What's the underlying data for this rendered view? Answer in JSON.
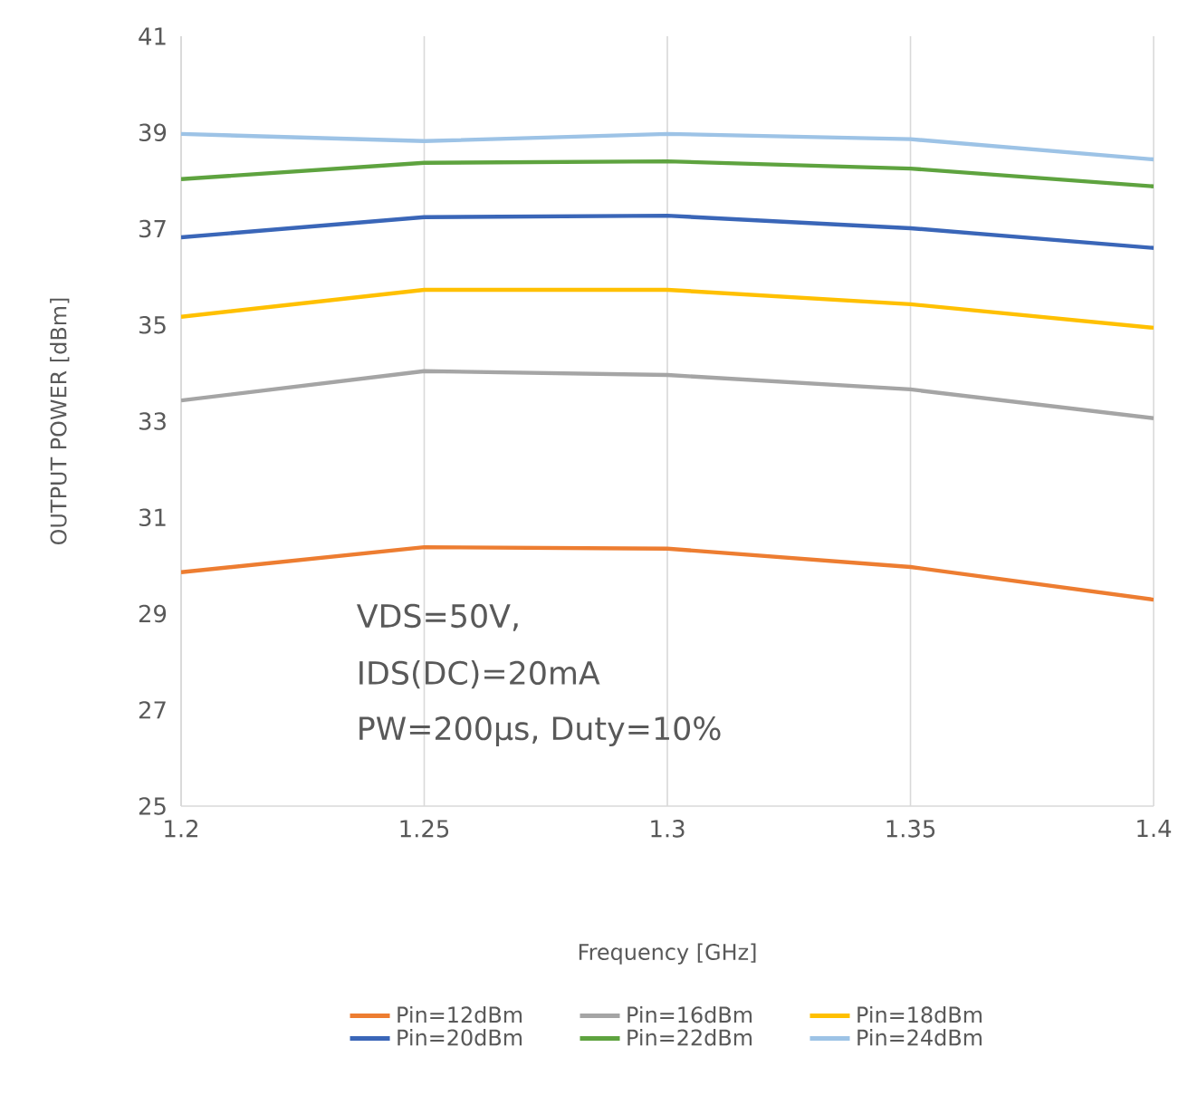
{
  "chart_data": {
    "type": "line",
    "xlabel": "Frequency [GHz]",
    "ylabel": "OUTPUT POWER [dBm]",
    "x": [
      1.2,
      1.25,
      1.3,
      1.35,
      1.4
    ],
    "xlim": [
      1.2,
      1.4
    ],
    "xticks": [
      1.2,
      1.25,
      1.3,
      1.35,
      1.4
    ],
    "ylim": [
      25,
      41
    ],
    "yticks": [
      25,
      27,
      29,
      31,
      33,
      35,
      37,
      39,
      41
    ],
    "grid": "x",
    "legend": "bottom",
    "series": [
      {
        "name": "Pin=12dBm",
        "color": "#ed7d31",
        "values": [
          29.86,
          30.38,
          30.35,
          29.97,
          29.29
        ]
      },
      {
        "name": "Pin=16dBm",
        "color": "#a5a5a5",
        "values": [
          33.43,
          34.04,
          33.96,
          33.66,
          33.06
        ]
      },
      {
        "name": "Pin=18dBm",
        "color": "#ffc000",
        "values": [
          35.17,
          35.73,
          35.73,
          35.43,
          34.94
        ]
      },
      {
        "name": "Pin=20dBm",
        "color": "#3a66b8",
        "values": [
          36.82,
          37.24,
          37.27,
          37.01,
          36.6
        ]
      },
      {
        "name": "Pin=22dBm",
        "color": "#5ea33f",
        "values": [
          38.03,
          38.37,
          38.4,
          38.25,
          37.88
        ]
      },
      {
        "name": "Pin=24dBm",
        "color": "#9dc3e6",
        "values": [
          38.97,
          38.82,
          38.97,
          38.86,
          38.44
        ]
      }
    ],
    "annotations": [
      "VDS=50V,",
      "IDS(DC)=20mA",
      "PW=200μs, Duty=10%"
    ]
  }
}
